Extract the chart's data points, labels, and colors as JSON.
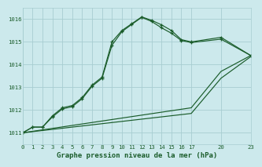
{
  "title": "Graphe pression niveau de la mer (hPa)",
  "bg_color": "#cce9ec",
  "grid_color": "#a8cdd1",
  "line_color": "#1a5c2a",
  "ylim": [
    1010.5,
    1016.5
  ],
  "xlim": [
    0,
    23
  ],
  "xticks": [
    0,
    1,
    2,
    3,
    4,
    5,
    6,
    7,
    8,
    9,
    10,
    11,
    12,
    13,
    14,
    15,
    16,
    17,
    20,
    23
  ],
  "yticks": [
    1011,
    1012,
    1013,
    1014,
    1015,
    1016
  ],
  "line1_x": [
    0,
    1,
    2,
    3,
    4,
    5,
    6,
    7,
    8,
    9,
    10,
    11,
    12,
    13,
    14,
    15,
    16,
    17,
    20,
    23
  ],
  "line1_y": [
    1011.0,
    1011.25,
    1011.25,
    1011.75,
    1012.1,
    1012.2,
    1012.55,
    1013.1,
    1013.45,
    1015.0,
    1015.5,
    1015.8,
    1016.1,
    1015.95,
    1015.75,
    1015.5,
    1015.1,
    1015.0,
    1015.2,
    1014.4
  ],
  "line2_x": [
    0,
    1,
    2,
    3,
    4,
    5,
    6,
    7,
    8,
    9,
    10,
    11,
    12,
    13,
    14,
    15,
    16,
    17,
    20,
    23
  ],
  "line2_y": [
    1011.0,
    1011.25,
    1011.25,
    1011.7,
    1012.05,
    1012.15,
    1012.5,
    1013.05,
    1013.4,
    1014.85,
    1015.45,
    1015.77,
    1016.08,
    1015.9,
    1015.62,
    1015.38,
    1015.06,
    1014.97,
    1015.12,
    1014.4
  ],
  "line3_x": [
    0,
    17,
    20,
    23
  ],
  "line3_y": [
    1011.0,
    1012.1,
    1013.7,
    1014.4
  ],
  "line4_x": [
    0,
    17,
    20,
    23
  ],
  "line4_y": [
    1011.0,
    1011.85,
    1013.4,
    1014.35
  ]
}
